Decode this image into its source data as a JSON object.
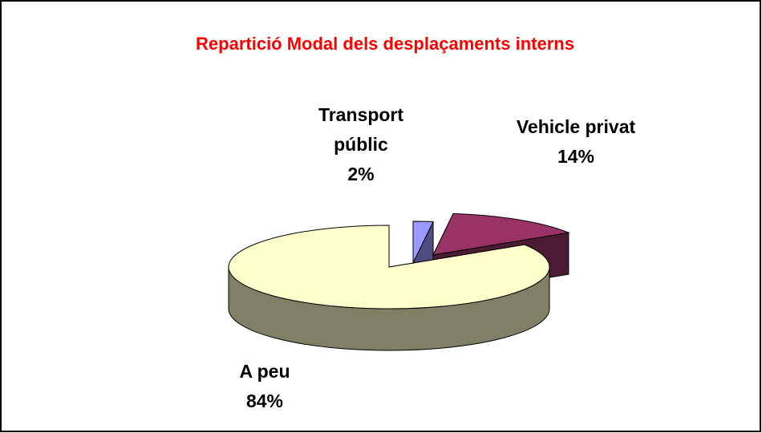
{
  "chart_data": {
    "type": "pie3d",
    "title": "Repartició Modal dels desplaçaments interns",
    "categories": [
      "Transport públic",
      "Vehicle privat",
      "A peu"
    ],
    "values": [
      2,
      14,
      84
    ],
    "value_labels": [
      "2%",
      "14%",
      "84%"
    ],
    "colors": [
      "#9999ff",
      "#993366",
      "#ffffcc"
    ]
  }
}
